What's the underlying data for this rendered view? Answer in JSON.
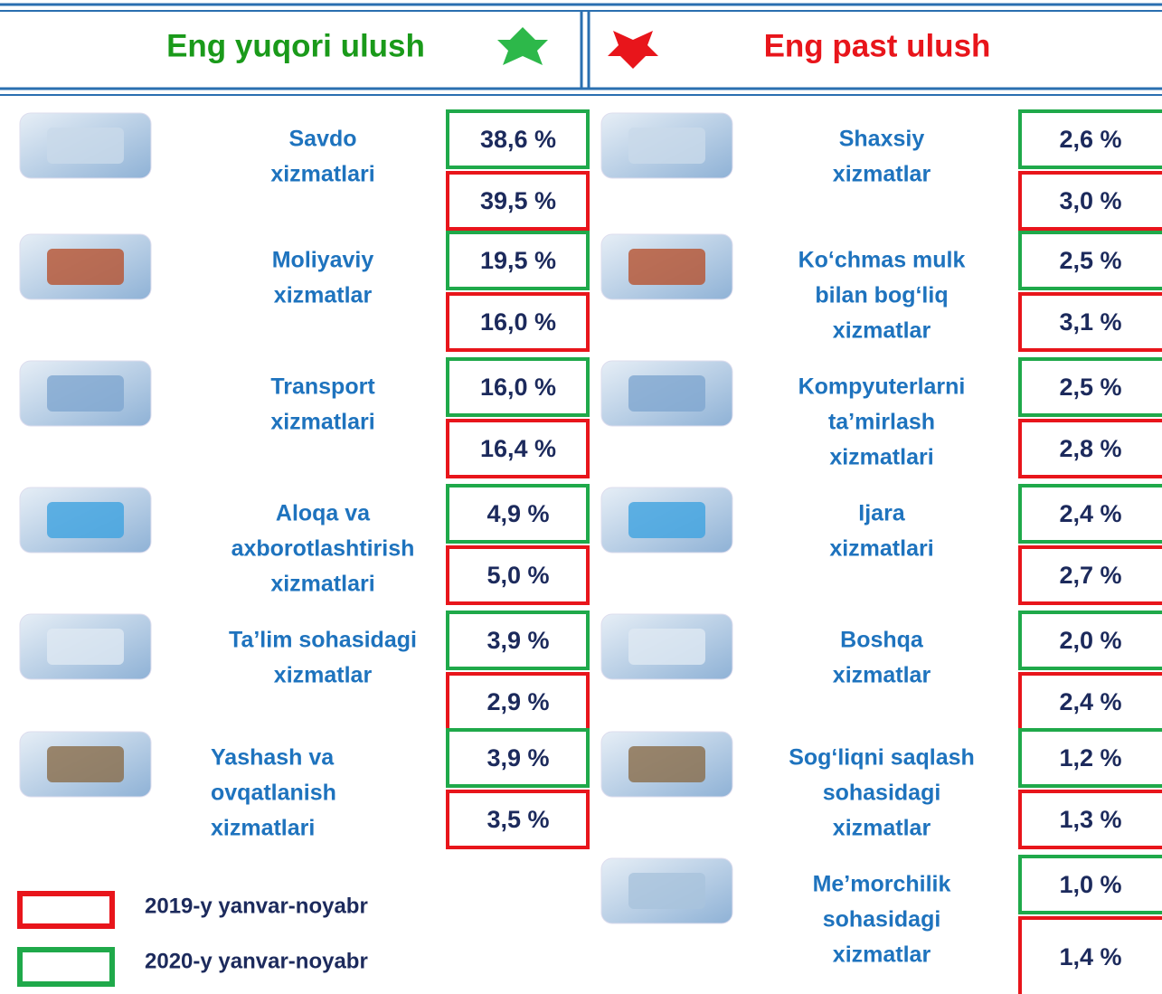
{
  "header": {
    "left_title": "Eng yuqori ulush",
    "right_title": "Eng past ulush"
  },
  "left_items": [
    {
      "label": [
        "Savdo",
        "xizmatlari"
      ],
      "value_2020": "38,6 %",
      "value_2019": "39,5 %"
    },
    {
      "label": [
        "Moliyaviy",
        "xizmatlar"
      ],
      "value_2020": "19,5 %",
      "value_2019": "16,0 %"
    },
    {
      "label": [
        "Transport",
        "xizmatlari"
      ],
      "value_2020": "16,0 %",
      "value_2019": "16,4 %"
    },
    {
      "label": [
        "Aloqa va",
        "axborotlashtirish",
        "xizmatlari"
      ],
      "value_2020": "4,9 %",
      "value_2019": "5,0 %"
    },
    {
      "label": [
        "Ta’lim sohasidagi",
        "xizmatlar"
      ],
      "value_2020": "3,9 %",
      "value_2019": "2,9 %"
    },
    {
      "label": [
        "Yashash va",
        "ovqatlanish",
        "xizmatlari"
      ],
      "value_2020": "3,9 %",
      "value_2019": "3,5 %"
    }
  ],
  "right_items": [
    {
      "label": [
        "Shaxsiy",
        "xizmatlar"
      ],
      "value_2020": "2,6 %",
      "value_2019": "3,0 %"
    },
    {
      "label": [
        "Ko‘chmas mulk",
        "bilan bog‘liq",
        "xizmatlar"
      ],
      "value_2020": "2,5 %",
      "value_2019": "3,1 %"
    },
    {
      "label": [
        "Kompyuterlarni",
        "ta’mirlash",
        "xizmatlari"
      ],
      "value_2020": "2,5 %",
      "value_2019": "2,8 %"
    },
    {
      "label": [
        "Ijara",
        "xizmatlari"
      ],
      "value_2020": "2,4 %",
      "value_2019": "2,7 %"
    },
    {
      "label": [
        "Boshqa",
        "xizmatlar"
      ],
      "value_2020": "2,0 %",
      "value_2019": "2,4 %"
    },
    {
      "label": [
        "Sog‘liqni saqlash",
        "sohasidagi",
        "xizmatlar"
      ],
      "value_2020": "1,2 %",
      "value_2019": "1,3 %"
    },
    {
      "label": [
        "Me’morchilik",
        "sohasidagi",
        "xizmatlar"
      ],
      "value_2020": "1,0 %",
      "value_2019": "1,4 %"
    }
  ],
  "legend": {
    "red": "2019-y yanvar-noyabr",
    "green": "2020-y yanvar-noyabr"
  }
}
